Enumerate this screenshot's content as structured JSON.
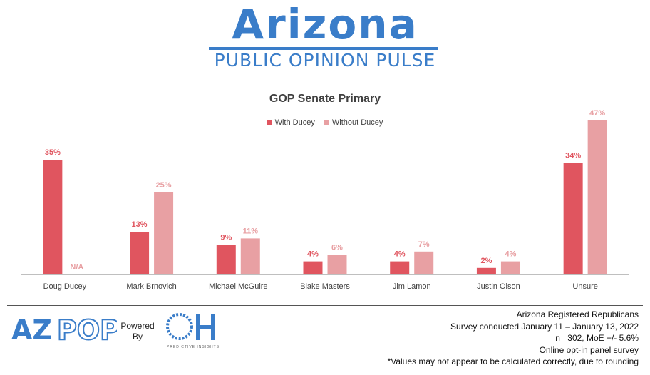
{
  "brand": {
    "title": "Arizona",
    "subtitle": "PUBLIC OPINION PULSE"
  },
  "chart_data": {
    "type": "bar",
    "title": "GOP Senate Primary",
    "categories": [
      "Doug Ducey",
      "Mark Brnovich",
      "Michael McGuire",
      "Blake Masters",
      "Jim Lamon",
      "Justin Olson",
      "Unsure"
    ],
    "series": [
      {
        "name": "With Ducey",
        "values": [
          35,
          13,
          9,
          4,
          4,
          2,
          34
        ],
        "labels": [
          "35%",
          "13%",
          "9%",
          "4%",
          "4%",
          "2%",
          "34%"
        ],
        "color": "#e0555f"
      },
      {
        "name": "Without Ducey",
        "values": [
          null,
          25,
          11,
          6,
          7,
          4,
          47
        ],
        "labels": [
          "N/A",
          "25%",
          "11%",
          "6%",
          "7%",
          "4%",
          "47%"
        ],
        "color": "#e8a0a3"
      }
    ],
    "ylim": [
      0,
      50
    ],
    "grid": false,
    "legend": "top-center"
  },
  "footer": {
    "powered_by": "Powered By",
    "oh_caption": "PREDICTIVE INSIGHTS",
    "notes": [
      "Arizona Registered Republicans",
      "Survey conducted January 11 – January 13, 2022",
      "n =302, MoE +/- 5.6%",
      "Online opt-in panel survey",
      "*Values may not appear to be calculated correctly, due to rounding"
    ]
  }
}
